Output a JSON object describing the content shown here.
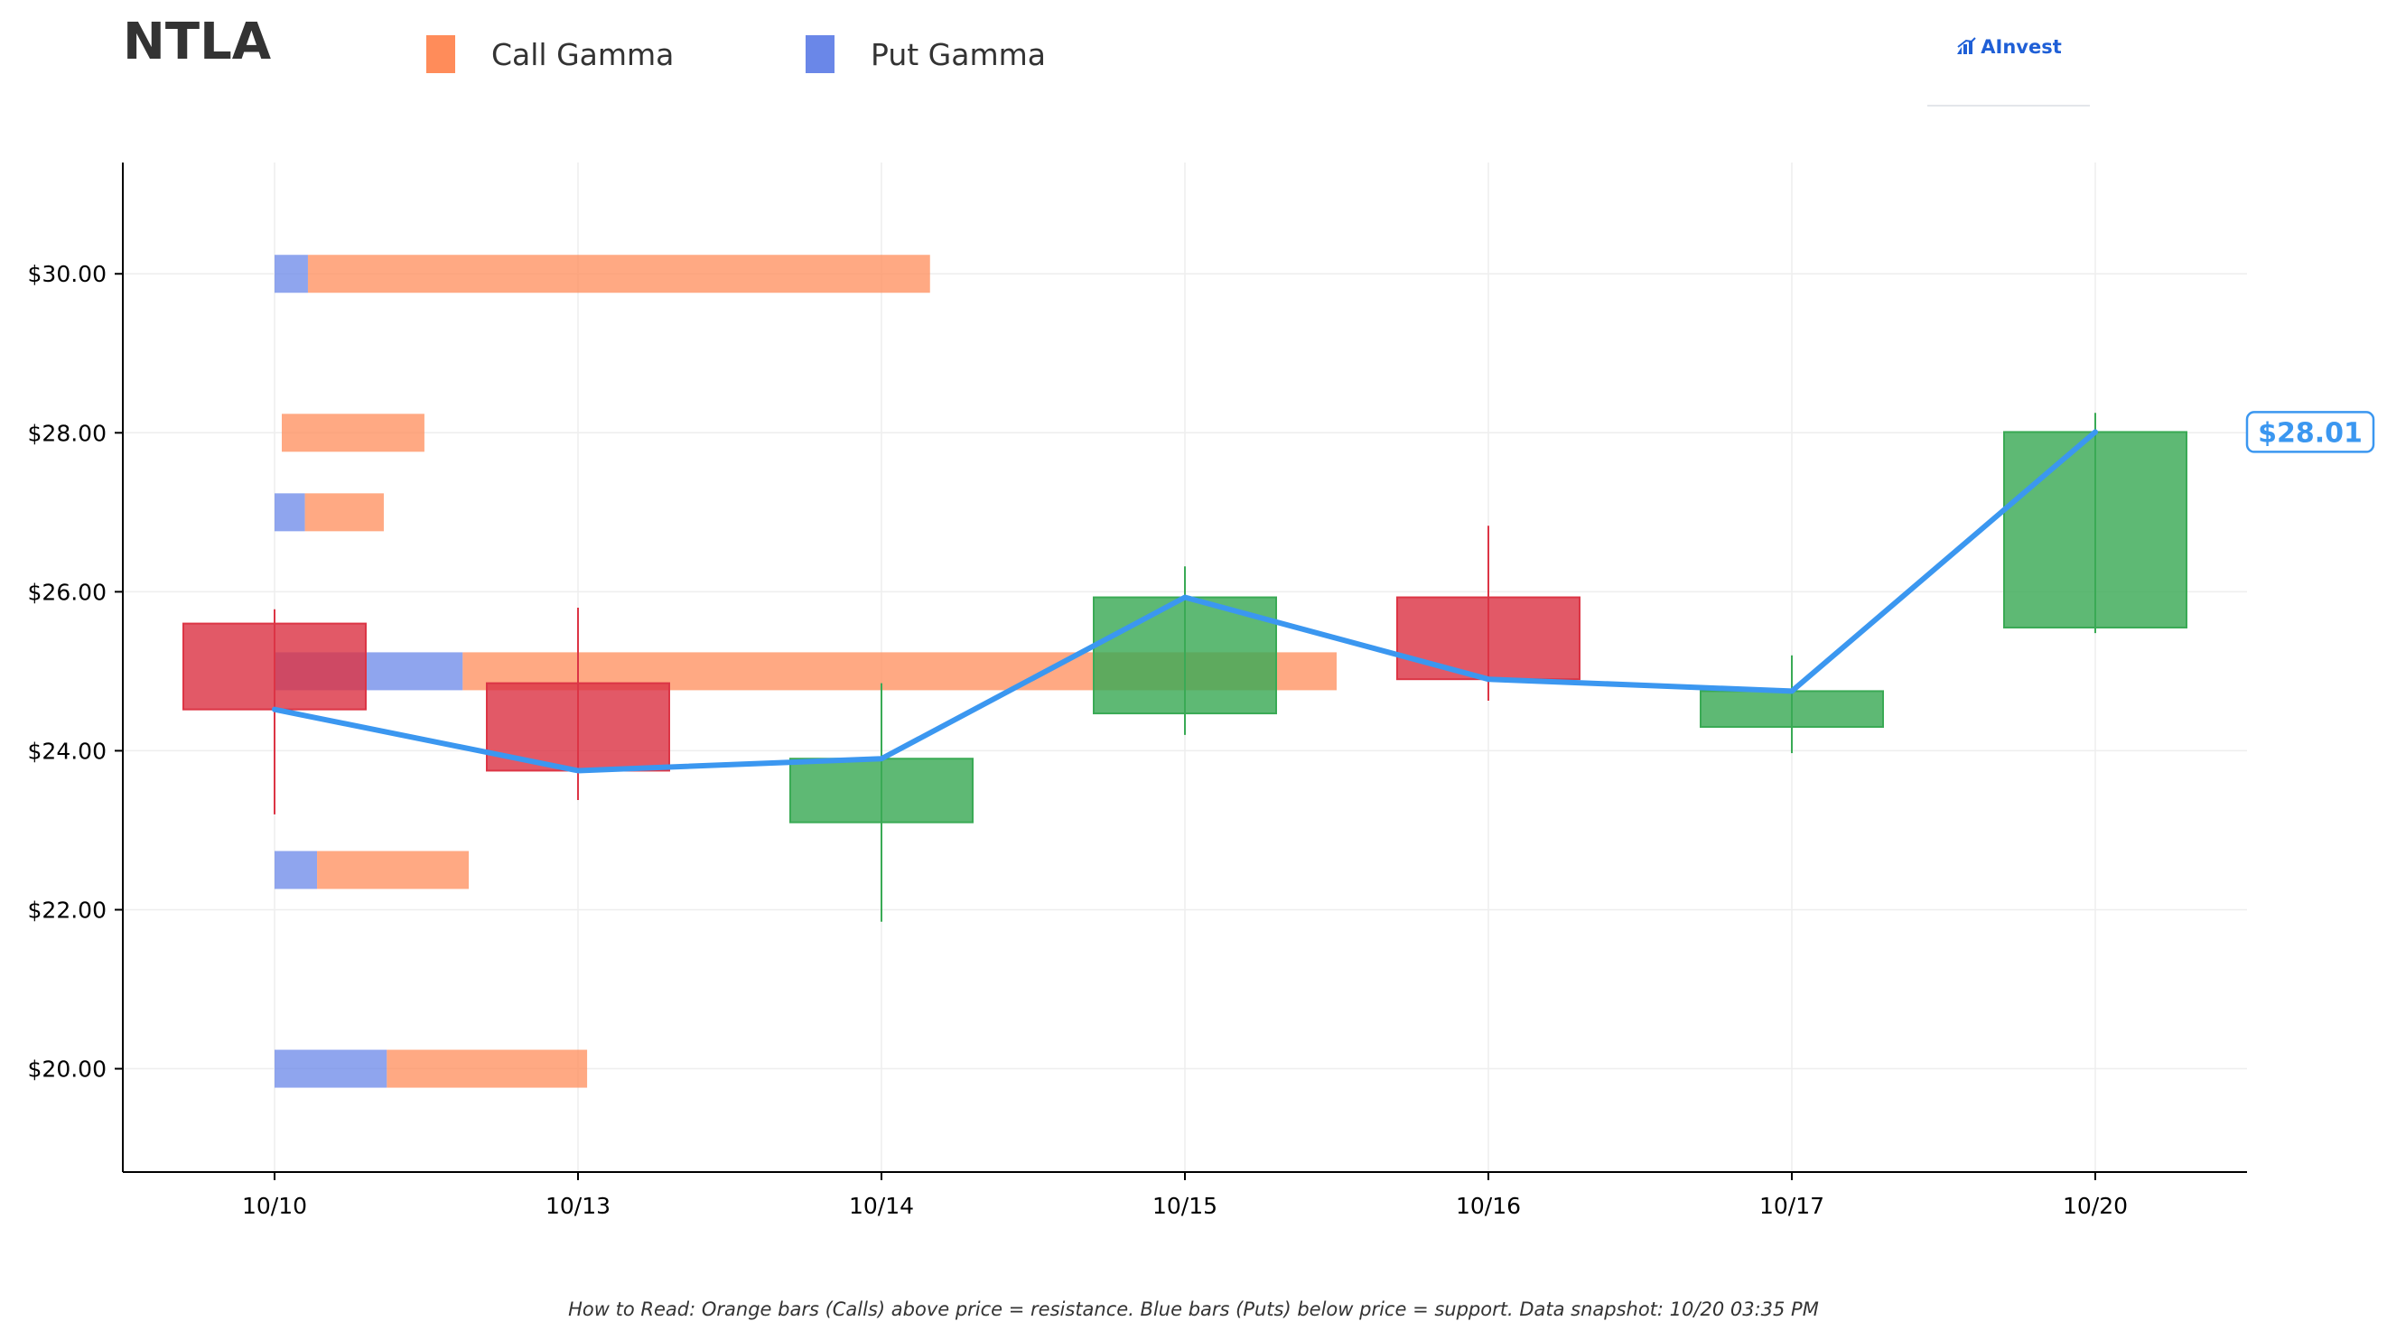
{
  "header": {
    "ticker": "NTLA",
    "legend": [
      {
        "label": "Call Gamma",
        "color": "#ff8c5a"
      },
      {
        "label": "Put Gamma",
        "color": "#6a87e8"
      }
    ],
    "logo_text": "AInvest"
  },
  "footnote": "How to Read: Orange bars (Calls) above price = resistance. Blue bars (Puts) below price = support. Data snapshot: 10/20 03:35 PM",
  "chart_data": {
    "type": "candlestick",
    "title": "NTLA",
    "categories": [
      "10/10",
      "10/13",
      "10/14",
      "10/15",
      "10/16",
      "10/17",
      "10/20"
    ],
    "ylim": [
      18.7,
      31.4
    ],
    "y_ticks": [
      20,
      22,
      24,
      26,
      28,
      30
    ],
    "y_tick_labels": [
      "$20.00",
      "$22.00",
      "$24.00",
      "$26.00",
      "$28.00",
      "$30.00"
    ],
    "grid": true,
    "candles": [
      {
        "date": "10/10",
        "open": 25.6,
        "high": 25.78,
        "low": 23.2,
        "close": 24.52
      },
      {
        "date": "10/13",
        "open": 24.85,
        "high": 25.8,
        "low": 23.38,
        "close": 23.75
      },
      {
        "date": "10/14",
        "open": 23.1,
        "high": 24.85,
        "low": 21.85,
        "close": 23.9
      },
      {
        "date": "10/15",
        "open": 24.47,
        "high": 26.32,
        "low": 24.2,
        "close": 25.93
      },
      {
        "date": "10/16",
        "open": 25.93,
        "high": 26.83,
        "low": 24.63,
        "close": 24.9
      },
      {
        "date": "10/17",
        "open": 24.3,
        "high": 25.2,
        "low": 23.97,
        "close": 24.75
      },
      {
        "date": "10/20",
        "open": 25.55,
        "high": 28.25,
        "low": 25.48,
        "close": 28.01
      }
    ],
    "close_line": {
      "color": "#3b97f0",
      "values": [
        24.52,
        23.75,
        23.9,
        25.93,
        24.9,
        24.75,
        28.01
      ]
    },
    "up_color": "#3aaa55",
    "down_color": "#dc3545",
    "gamma_bars": [
      {
        "strike": 30,
        "put": 0.11,
        "call": 2.05
      },
      {
        "strike": 28,
        "put": 0,
        "call": 0.47
      },
      {
        "strike": 27,
        "put": 0.1,
        "call": 0.26
      },
      {
        "strike": 25,
        "put": 0.62,
        "call": 2.88
      },
      {
        "strike": 22.5,
        "put": 0.14,
        "call": 0.5
      },
      {
        "strike": 20,
        "put": 0.37,
        "call": 0.66
      }
    ],
    "gamma_bar_units": "x-axis category units from 10/10",
    "last_price_label": "$28.01"
  }
}
